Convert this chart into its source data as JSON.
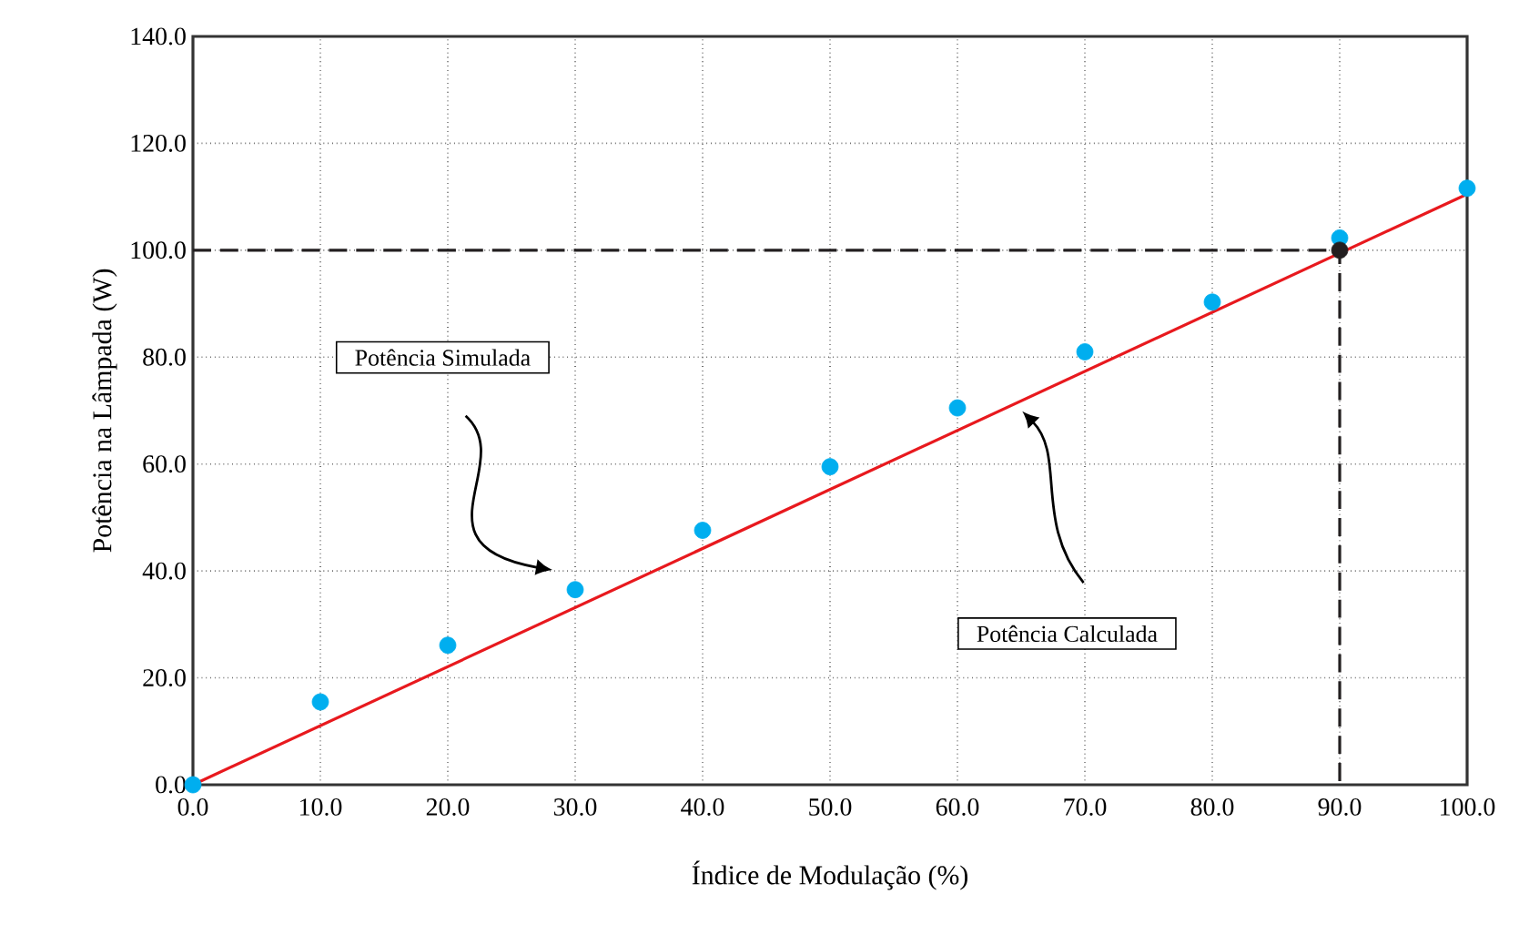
{
  "chart_data": {
    "type": "scatter",
    "xlabel": "Índice de Modulação (%)",
    "ylabel": "Potência na Lâmpada (W)",
    "xlim": [
      0,
      100
    ],
    "ylim": [
      0,
      140
    ],
    "xticks": [
      {
        "value": 0,
        "label": "0.0"
      },
      {
        "value": 10,
        "label": "10.0"
      },
      {
        "value": 20,
        "label": "20.0"
      },
      {
        "value": 30,
        "label": "30.0"
      },
      {
        "value": 40,
        "label": "40.0"
      },
      {
        "value": 50,
        "label": "50.0"
      },
      {
        "value": 60,
        "label": "60.0"
      },
      {
        "value": 70,
        "label": "70.0"
      },
      {
        "value": 80,
        "label": "80.0"
      },
      {
        "value": 90,
        "label": "90.0"
      },
      {
        "value": 100,
        "label": "100.0"
      }
    ],
    "yticks": [
      {
        "value": 0,
        "label": "0.0"
      },
      {
        "value": 20,
        "label": "20.0"
      },
      {
        "value": 40,
        "label": "40.0"
      },
      {
        "value": 60,
        "label": "60.0"
      },
      {
        "value": 80,
        "label": "80.0"
      },
      {
        "value": 100,
        "label": "100.0"
      },
      {
        "value": 120,
        "label": "120.0"
      },
      {
        "value": 140,
        "label": "140.0"
      }
    ],
    "grid": true,
    "marker": "circle",
    "series": [
      {
        "type": "line",
        "color": "#e8191e",
        "x": [
          0,
          100
        ],
        "values": [
          0,
          110.5
        ],
        "marker": "none",
        "line_style": "solid"
      },
      {
        "color": "#00aeef",
        "x": [
          0,
          10,
          20,
          30,
          40,
          50,
          60,
          70,
          80,
          90,
          100
        ],
        "values": [
          0,
          15.5,
          26.1,
          36.5,
          47.6,
          59.5,
          70.5,
          81,
          90.3,
          102.3,
          111.6
        ]
      },
      {
        "type": "line",
        "color": "#231f20",
        "x": [
          0,
          90,
          90
        ],
        "values": [
          100,
          100,
          0
        ],
        "marker": "none",
        "line_style": "dashed"
      },
      {
        "color": "#231f20",
        "x": [
          90
        ],
        "values": [
          100
        ]
      }
    ],
    "annotations": [
      "Potência Simulada",
      "Potência Calculada"
    ]
  }
}
